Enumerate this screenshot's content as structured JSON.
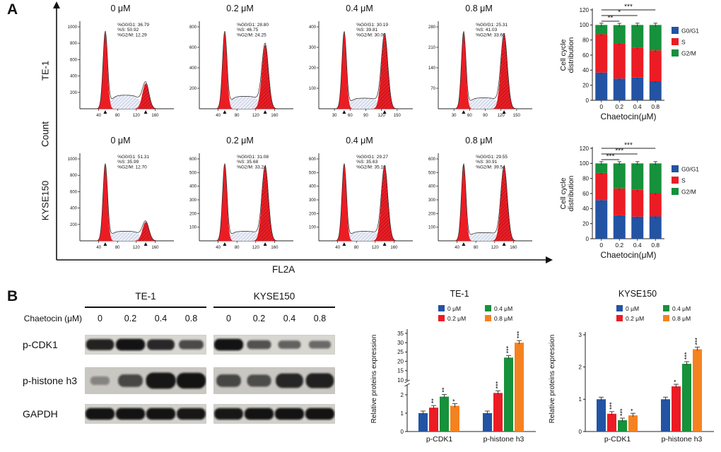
{
  "colors": {
    "g0g1_blue": "#2353a3",
    "s_red": "#ec1c24",
    "g2m_green": "#16913c",
    "dose_0": "#2353a3",
    "dose_02": "#ec1c24",
    "dose_04": "#16913c",
    "dose_08": "#f58220"
  },
  "panel_a": {
    "label": "A",
    "count_axis_label": "Count",
    "x_axis_label": "FL2A",
    "annotation_labels": [
      "%G0/G1:",
      "%S:",
      "%G2/M:"
    ],
    "rows": [
      {
        "cell_line": "TE-1",
        "plots": [
          {
            "dose": "0 μM",
            "values": [
              "36.79",
              "50.92",
              "12.29"
            ],
            "yticks": [
              "200",
              "400",
              "600",
              "800",
              "1000"
            ],
            "xticks": [
              "40",
              "80",
              "120",
              "160"
            ]
          },
          {
            "dose": "0.2 μM",
            "values": [
              "28.80",
              "46.75",
              "24.25"
            ],
            "yticks": [
              "200",
              "400",
              "600",
              "800"
            ],
            "xticks": [
              "40",
              "80",
              "120",
              "160"
            ]
          },
          {
            "dose": "0.4 μM",
            "values": [
              "30.19",
              "39.81",
              "30.00"
            ],
            "yticks": [
              "100",
              "200",
              "300",
              "400"
            ],
            "xticks": [
              "30",
              "60",
              "90",
              "120",
              "150"
            ]
          },
          {
            "dose": "0.8 μM",
            "values": [
              "25.31",
              "41.03",
              "33.66"
            ],
            "yticks": [
              "70",
              "140",
              "210",
              "280"
            ],
            "xticks": [
              "30",
              "60",
              "90",
              "120",
              "150"
            ]
          }
        ]
      },
      {
        "cell_line": "KYSE150",
        "plots": [
          {
            "dose": "0 μM",
            "values": [
              "51.31",
              "35.99",
              "12.70"
            ],
            "yticks": [
              "200",
              "400",
              "600",
              "800",
              "1000"
            ],
            "xticks": [
              "40",
              "80",
              "120",
              "160"
            ]
          },
          {
            "dose": "0.2 μM",
            "values": [
              "31.08",
              "35.68",
              "33.24"
            ],
            "yticks": [
              "100",
              "200",
              "300",
              "400",
              "500",
              "600"
            ],
            "xticks": [
              "40",
              "80",
              "120",
              "160"
            ]
          },
          {
            "dose": "0.4 μM",
            "values": [
              "29.27",
              "35.63",
              "35.10"
            ],
            "yticks": [
              "100",
              "200",
              "300",
              "400",
              "500",
              "600"
            ],
            "xticks": [
              "40",
              "80",
              "120",
              "160"
            ]
          },
          {
            "dose": "0.8 μM",
            "values": [
              "29.55",
              "30.91",
              "39.54"
            ],
            "yticks": [
              "100",
              "200",
              "300",
              "400",
              "500",
              "600"
            ],
            "xticks": [
              "40",
              "80",
              "120",
              "160"
            ]
          }
        ]
      }
    ]
  },
  "panel_b": {
    "label": "B",
    "chaetocin_label": "Chaetocin (μM)",
    "groups": [
      {
        "cell_line": "TE-1",
        "doses": [
          "0",
          "0.2",
          "0.4",
          "0.8"
        ]
      },
      {
        "cell_line": "KYSE150",
        "doses": [
          "0",
          "0.2",
          "0.4",
          "0.8"
        ]
      }
    ],
    "proteins": [
      {
        "name": "p-CDK1",
        "bands_te1": [
          0.85,
          0.95,
          0.8,
          0.55
        ],
        "bands_kyse150": [
          0.95,
          0.5,
          0.38,
          0.32
        ]
      },
      {
        "name": "p-histone h3",
        "bands_te1": [
          0.06,
          0.55,
          1.0,
          0.95
        ],
        "bands_kyse150": [
          0.55,
          0.5,
          0.8,
          0.85
        ]
      },
      {
        "name": "GAPDH",
        "bands_te1": [
          0.95,
          0.95,
          0.95,
          0.92
        ],
        "bands_kyse150": [
          0.92,
          0.95,
          0.95,
          0.95
        ]
      }
    ]
  },
  "chart_data": [
    {
      "id": "te1-cycle",
      "type": "stacked_bar",
      "cell_line": "TE-1",
      "categories": [
        "0",
        "0.2",
        "0.4",
        "0.8"
      ],
      "series": [
        {
          "name": "G0/G1",
          "color": "g0g1_blue",
          "values": [
            36.79,
            28.8,
            30.19,
            25.31
          ]
        },
        {
          "name": "S",
          "color": "s_red",
          "values": [
            50.92,
            46.75,
            39.81,
            41.03
          ]
        },
        {
          "name": "G2/M",
          "color": "g2m_green",
          "values": [
            12.29,
            24.25,
            30.0,
            33.66
          ]
        }
      ],
      "ylabel_lines": [
        "Cell cycle",
        "distribution"
      ],
      "xlabel": "Chaetocin(μM)",
      "yticks": [
        0,
        20,
        40,
        60,
        80,
        100,
        120
      ],
      "ylim": [
        0,
        120
      ],
      "legend_position": "right",
      "significance": [
        {
          "from": 0,
          "to": 1,
          "label": "**"
        },
        {
          "from": 0,
          "to": 2,
          "label": "*"
        },
        {
          "from": 0,
          "to": 3,
          "label": "***"
        }
      ]
    },
    {
      "id": "kyse150-cycle",
      "type": "stacked_bar",
      "cell_line": "KYSE150",
      "categories": [
        "0",
        "0.2",
        "0.4",
        "0.8"
      ],
      "series": [
        {
          "name": "G0/G1",
          "color": "g0g1_blue",
          "values": [
            51.31,
            31.08,
            29.27,
            29.55
          ]
        },
        {
          "name": "S",
          "color": "s_red",
          "values": [
            35.99,
            35.68,
            35.63,
            30.91
          ]
        },
        {
          "name": "G2/M",
          "color": "g2m_green",
          "values": [
            12.7,
            33.24,
            35.1,
            39.54
          ]
        }
      ],
      "ylabel_lines": [
        "Cell cycle",
        "distribution"
      ],
      "xlabel": "Chaetocin(μM)",
      "yticks": [
        0,
        20,
        40,
        60,
        80,
        100,
        120
      ],
      "ylim": [
        0,
        120
      ],
      "legend_position": "right",
      "significance": [
        {
          "from": 0,
          "to": 1,
          "label": "***"
        },
        {
          "from": 0,
          "to": 2,
          "label": "***"
        },
        {
          "from": 0,
          "to": 3,
          "label": "***"
        }
      ]
    },
    {
      "id": "te1-protein",
      "type": "grouped_bar",
      "title": "TE-1",
      "ylabel": "Relative proteins expression",
      "categories": [
        "p-CDK1",
        "p-histone h3"
      ],
      "series": [
        {
          "name": "0 μM",
          "color": "dose_0",
          "values": [
            1.0,
            1.0
          ],
          "sig": [
            "",
            ""
          ]
        },
        {
          "name": "0.2 μM",
          "color": "dose_02",
          "values": [
            1.3,
            2.1
          ],
          "sig": [
            "**",
            "***"
          ]
        },
        {
          "name": "0.4 μM",
          "color": "dose_04",
          "values": [
            1.9,
            22.0
          ],
          "sig": [
            "**",
            "***"
          ]
        },
        {
          "name": "0.8 μM",
          "color": "dose_08",
          "values": [
            1.4,
            30.0
          ],
          "sig": [
            "*",
            "***"
          ]
        }
      ],
      "axis_break": {
        "lower_ticks": [
          0,
          1,
          2
        ],
        "upper_ticks": [
          10,
          15,
          20,
          25,
          30,
          35
        ],
        "lower_max": 2.5,
        "upper_min": 10,
        "upper_max": 35
      }
    },
    {
      "id": "kyse150-protein",
      "type": "grouped_bar",
      "title": "KYSE150",
      "ylabel": "Relative proteins expression",
      "categories": [
        "p-CDK1",
        "p-histone h3"
      ],
      "series": [
        {
          "name": "0 μM",
          "color": "dose_0",
          "values": [
            1.0,
            1.0
          ],
          "sig": [
            "",
            ""
          ]
        },
        {
          "name": "0.2 μM",
          "color": "dose_02",
          "values": [
            0.55,
            1.4
          ],
          "sig": [
            "***",
            "*"
          ]
        },
        {
          "name": "0.4 μM",
          "color": "dose_04",
          "values": [
            0.35,
            2.1
          ],
          "sig": [
            "***",
            "***"
          ]
        },
        {
          "name": "0.8 μM",
          "color": "dose_08",
          "values": [
            0.5,
            2.55
          ],
          "sig": [
            "*",
            "***"
          ]
        }
      ],
      "yticks": [
        0,
        1,
        2,
        3
      ],
      "ylim": [
        0,
        3
      ]
    }
  ]
}
